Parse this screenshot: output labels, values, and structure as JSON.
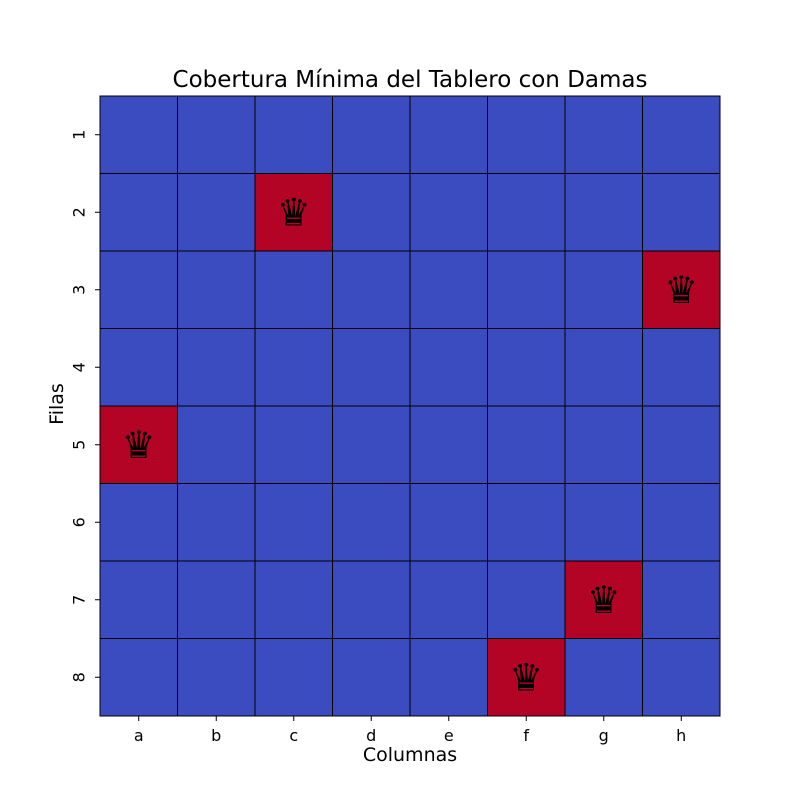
{
  "chart_data": {
    "type": "heatmap",
    "title": "Cobertura Mínima del Tablero con Damas",
    "xlabel": "Columnas",
    "ylabel": "Filas",
    "columns": [
      "a",
      "b",
      "c",
      "d",
      "e",
      "f",
      "g",
      "h"
    ],
    "rows": [
      "1",
      "2",
      "3",
      "4",
      "5",
      "6",
      "7",
      "8"
    ],
    "values": [
      [
        0,
        0,
        0,
        0,
        0,
        0,
        0,
        0
      ],
      [
        0,
        0,
        1,
        0,
        0,
        0,
        0,
        0
      ],
      [
        0,
        0,
        0,
        0,
        0,
        0,
        0,
        1
      ],
      [
        0,
        0,
        0,
        0,
        0,
        0,
        0,
        0
      ],
      [
        1,
        0,
        0,
        0,
        0,
        0,
        0,
        0
      ],
      [
        0,
        0,
        0,
        0,
        0,
        0,
        0,
        0
      ],
      [
        0,
        0,
        0,
        0,
        0,
        0,
        1,
        0
      ],
      [
        0,
        0,
        0,
        0,
        0,
        1,
        0,
        0
      ]
    ],
    "queens": [
      {
        "row": "2",
        "column": "c"
      },
      {
        "row": "3",
        "column": "h"
      },
      {
        "row": "5",
        "column": "a"
      },
      {
        "row": "7",
        "column": "g"
      },
      {
        "row": "8",
        "column": "f"
      }
    ],
    "marker_symbol": "♛",
    "colors": {
      "empty": "#3b4cc0",
      "queen": "#b40426",
      "grid": "#000000"
    },
    "grid": true,
    "colorbar": false
  }
}
